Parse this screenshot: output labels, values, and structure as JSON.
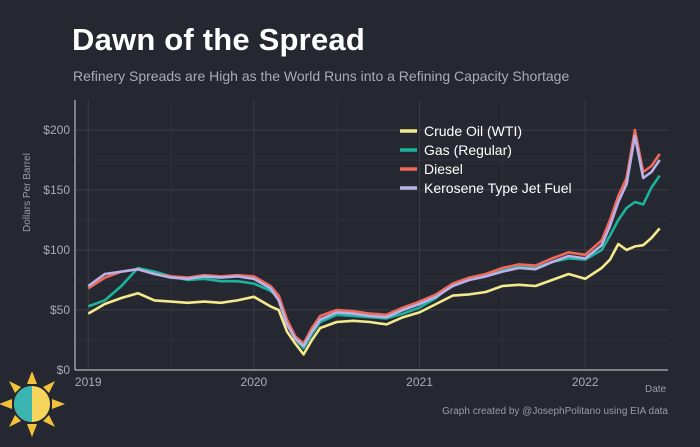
{
  "header": {
    "title": "Dawn of the Spread",
    "subtitle": "Refinery Spreads are High as the World Runs into a Refining Capacity Shortage"
  },
  "footer": {
    "caption": "Graph created by @JosephPolitano using EIA data"
  },
  "logo": {
    "icon": "sun-logo-icon"
  },
  "chart_data": {
    "type": "line",
    "xlabel": "Date",
    "ylabel": "Dollars Per Barrel",
    "x_ticks": [
      "2019",
      "2020",
      "2021",
      "2022"
    ],
    "y_ticks": [
      "$0",
      "$50",
      "$100",
      "$150",
      "$200"
    ],
    "ylim": [
      0,
      225
    ],
    "xlim": [
      2018.92,
      2022.5
    ],
    "grid": true,
    "legend_position": "top-right",
    "x": [
      2019.0,
      2019.1,
      2019.2,
      2019.3,
      2019.4,
      2019.5,
      2019.6,
      2019.7,
      2019.8,
      2019.9,
      2020.0,
      2020.1,
      2020.15,
      2020.2,
      2020.25,
      2020.3,
      2020.35,
      2020.4,
      2020.5,
      2020.6,
      2020.7,
      2020.8,
      2020.9,
      2021.0,
      2021.1,
      2021.2,
      2021.3,
      2021.4,
      2021.5,
      2021.6,
      2021.7,
      2021.8,
      2021.9,
      2022.0,
      2022.1,
      2022.15,
      2022.2,
      2022.25,
      2022.3,
      2022.35,
      2022.4,
      2022.45
    ],
    "series": [
      {
        "name": "Crude Oil (WTI)",
        "color": "#f4e98c",
        "values": [
          47,
          55,
          60,
          64,
          58,
          57,
          56,
          57,
          56,
          58,
          61,
          53,
          50,
          32,
          22,
          13,
          25,
          35,
          40,
          41,
          40,
          38,
          44,
          48,
          55,
          62,
          63,
          65,
          70,
          71,
          70,
          75,
          80,
          76,
          85,
          92,
          105,
          100,
          103,
          104,
          110,
          118
        ]
      },
      {
        "name": "Gas (Regular)",
        "color": "#1bb39c",
        "values": [
          53,
          58,
          70,
          85,
          82,
          78,
          75,
          76,
          74,
          74,
          72,
          66,
          60,
          40,
          26,
          18,
          30,
          40,
          46,
          45,
          44,
          43,
          47,
          52,
          60,
          72,
          76,
          78,
          84,
          86,
          85,
          90,
          93,
          92,
          100,
          112,
          125,
          135,
          140,
          138,
          152,
          162
        ]
      },
      {
        "name": "Diesel",
        "color": "#ef6a5b",
        "values": [
          68,
          77,
          82,
          84,
          80,
          78,
          77,
          79,
          78,
          79,
          78,
          70,
          62,
          42,
          28,
          22,
          35,
          45,
          50,
          49,
          47,
          46,
          52,
          57,
          63,
          72,
          77,
          80,
          85,
          88,
          87,
          93,
          98,
          96,
          108,
          125,
          145,
          160,
          200,
          165,
          170,
          180
        ]
      },
      {
        "name": "Kerosene Type Jet Fuel",
        "color": "#b8b2e8",
        "values": [
          70,
          80,
          82,
          84,
          80,
          77,
          76,
          78,
          77,
          78,
          76,
          68,
          58,
          38,
          26,
          20,
          32,
          42,
          48,
          47,
          45,
          44,
          50,
          55,
          61,
          70,
          75,
          78,
          82,
          85,
          84,
          90,
          95,
          93,
          104,
          120,
          140,
          155,
          195,
          160,
          165,
          175
        ]
      }
    ]
  }
}
